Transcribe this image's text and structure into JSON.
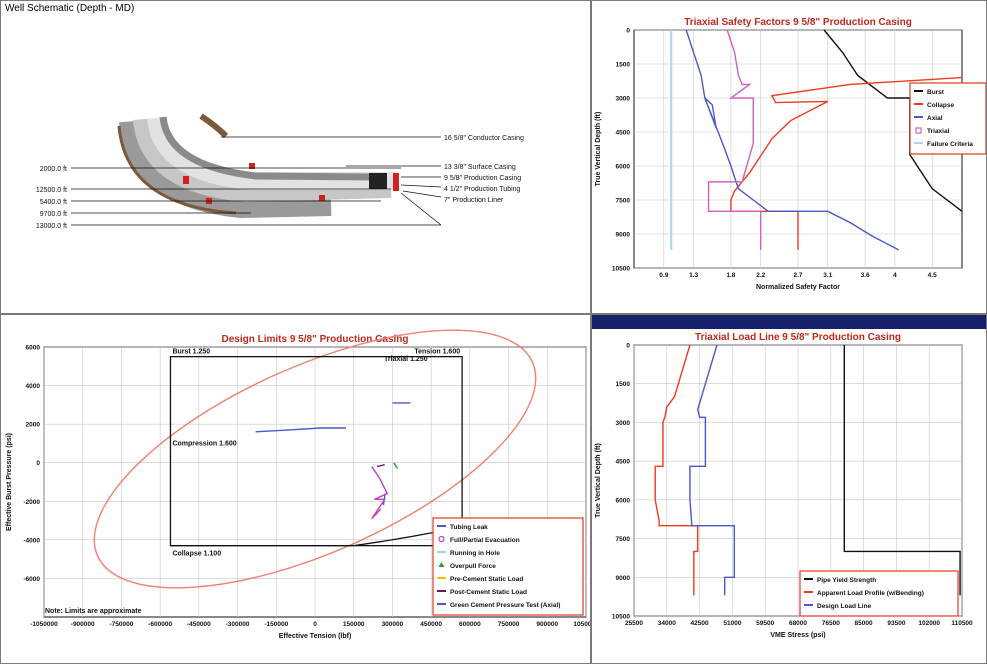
{
  "schematic": {
    "title": "Well Schematic  (Depth - MD)",
    "depth_labels": [
      "2000.0 ft",
      "12500.0 ft",
      "5400.0 ft",
      "9700.0 ft",
      "13000.0 ft"
    ],
    "string_labels": [
      "16 5/8\" Conductor Casing",
      "13 3/8\" Surface Casing",
      "9 5/8\" Production Casing",
      "4 1/2\" Production Tubing",
      "7\" Production Liner"
    ]
  },
  "colors": {
    "title": "#c0281c",
    "grid": "#c8c8c8",
    "legend_border": "#e03a1e",
    "burst": "#111111",
    "collapse": "#f03a1e",
    "axial": "#4a58c8",
    "triaxial": "#d060c0",
    "failure": "#a8d4ee",
    "ellipse": "#f08070",
    "topbar": "#17216a"
  },
  "chart_data": [
    {
      "id": "triaxial_safety_factors",
      "type": "line",
      "title": "Triaxial Safety Factors  9 5/8\" Production Casing",
      "xlabel": "Normalized Safety Factor",
      "ylabel": "True Vertical Depth (ft)",
      "xlim": [
        0.5,
        4.9
      ],
      "ylim": [
        0,
        10500
      ],
      "y_inverted": true,
      "xticks": [
        0.9,
        1.3,
        1.8,
        2.2,
        2.7,
        3.1,
        3.6,
        4.0,
        4.5
      ],
      "yticks": [
        0,
        1500,
        3000,
        4500,
        6000,
        7500,
        9000,
        10500
      ],
      "legend": [
        "Burst",
        "Collapse",
        "Axial",
        "Triaxial",
        "Failure Criteria"
      ],
      "series": [
        {
          "name": "Burst",
          "color": "#111111",
          "x": [
            3.05,
            3.3,
            3.5,
            3.9,
            3.9,
            4.2,
            4.2,
            4.5,
            4.9
          ],
          "y": [
            0,
            1000,
            2000,
            3000,
            3000,
            3000,
            5500,
            7000,
            8000
          ]
        },
        {
          "name": "Collapse",
          "color": "#f03a1e",
          "x": [
            4.9,
            3.4,
            2.35,
            2.4,
            3.1,
            2.6,
            2.35,
            2.15,
            2.05,
            1.95,
            1.85,
            1.8,
            1.8,
            2.7,
            2.7
          ],
          "y": [
            2100,
            2400,
            2900,
            3200,
            3150,
            4000,
            4800,
            5800,
            6300,
            6700,
            7100,
            7500,
            8000,
            8000,
            9700
          ]
        },
        {
          "name": "Axial",
          "color": "#4a58c8",
          "x": [
            1.2,
            1.3,
            1.4,
            1.45,
            1.5,
            1.55,
            1.6,
            1.45,
            1.7,
            1.8,
            1.9,
            2.1,
            2.3,
            3.1,
            3.4,
            3.7,
            4.05
          ],
          "y": [
            0,
            1000,
            2000,
            3000,
            3150,
            3300,
            4300,
            3000,
            5100,
            6000,
            7000,
            7500,
            8000,
            8000,
            8500,
            9100,
            9700
          ]
        },
        {
          "name": "Triaxial",
          "color": "#d060c0",
          "x": [
            1.75,
            1.85,
            1.9,
            1.95,
            2.05,
            1.8,
            2.1,
            2.1,
            1.95,
            1.5,
            1.5,
            2.2,
            2.2
          ],
          "y": [
            0,
            1000,
            2000,
            2400,
            2400,
            3000,
            3000,
            5000,
            6700,
            6700,
            8000,
            8000,
            9700
          ]
        },
        {
          "name": "Failure Criteria",
          "color": "#a8d4ee",
          "x": [
            1.0,
            1.0
          ],
          "y": [
            0,
            9700
          ]
        }
      ]
    },
    {
      "id": "design_limits",
      "type": "scatter",
      "title": "Design Limits  9 5/8\" Production Casing",
      "xlabel": "Effective Tension (lbf)",
      "ylabel": "Effective Burst Pressure (psi)",
      "xlim": [
        -1050000,
        1050000
      ],
      "ylim": [
        -8000,
        6000
      ],
      "xticks": [
        -1050000,
        -900000,
        -750000,
        -600000,
        -450000,
        -300000,
        -150000,
        0,
        150000,
        300000,
        450000,
        600000,
        750000,
        900000,
        1050000
      ],
      "xtick_labels": [
        "-1050000",
        "-900000",
        "-750000",
        "-600000",
        "-450000",
        "-300000",
        "-150000",
        "0",
        "150000",
        "300000",
        "450000",
        "600000",
        "750000",
        "900000",
        "1050000"
      ],
      "yticks": [
        -6000,
        -4000,
        -2000,
        0,
        2000,
        4000,
        6000
      ],
      "annotations": {
        "triaxial": "Triaxial 1.250",
        "burst": "Burst 1.250",
        "tension": "Tension 1.600",
        "compression": "Compression 1.600",
        "collapse": "Collapse 1.100",
        "note": "Note: Limits are approximate"
      },
      "design_box": {
        "x": [
          -560000,
          570000
        ],
        "y": [
          -4300,
          5500
        ]
      },
      "legend": [
        "Tubing Leak",
        "Full/Partial Evacuation",
        "Running in Hole",
        "Overpull Force",
        "Pre-Cement Static Load",
        "Post-Cement Static Load",
        "Green Cement Pressure Test (Axial)"
      ],
      "series": [
        {
          "name": "Tubing Leak",
          "color": "#4a58c8",
          "x": [
            -230000,
            -100000,
            20000,
            120000
          ],
          "y": [
            1600,
            1700,
            1800,
            1800
          ]
        },
        {
          "name": "Tubing Leak 2",
          "color": "#4a58c8",
          "x": [
            300000,
            370000
          ],
          "y": [
            3100,
            3100
          ]
        },
        {
          "name": "Tubing Leak 3",
          "color": "#4a58c8",
          "x": [
            265000,
            272000
          ],
          "y": [
            -2200,
            -1600
          ]
        },
        {
          "name": "Full/Partial Evacuation",
          "color": "#c040c0",
          "x": [
            220000,
            250000,
            280000,
            230000,
            270000,
            220000,
            255000
          ],
          "y": [
            -200,
            -800,
            -1600,
            -1900,
            -1900,
            -2900,
            -2400
          ]
        },
        {
          "name": "Post-Cement Static Load",
          "color": "#6a1a6a",
          "x": [
            240000,
            270000
          ],
          "y": [
            -200,
            -100
          ]
        },
        {
          "name": "Overpull Force",
          "color": "#2aa02a",
          "x": [
            305000,
            320000
          ],
          "y": [
            0,
            -300
          ]
        }
      ]
    },
    {
      "id": "triaxial_load_line",
      "type": "line",
      "title": "Triaxial Load Line  9 5/8\" Production Casing",
      "xlabel": "VME Stress (psi)",
      "ylabel": "True Vertical Depth (ft)",
      "xlim": [
        25500,
        110500
      ],
      "ylim": [
        0,
        10500
      ],
      "y_inverted": true,
      "xticks": [
        25500,
        34000,
        42500,
        51000,
        59500,
        68000,
        76500,
        85000,
        93500,
        102000,
        110500
      ],
      "xtick_labels": [
        "25500",
        "34000",
        "42500",
        "51000",
        "59500",
        "68000",
        "76500",
        "85000",
        "93500",
        "102000",
        "110500"
      ],
      "yticks": [
        0,
        1500,
        3000,
        4500,
        6000,
        7500,
        9000,
        10500
      ],
      "legend": [
        "Pipe Yield Strength",
        "Apparent Load Profile (w/Bending)",
        "Design Load Line"
      ],
      "series": [
        {
          "name": "Pipe Yield Strength",
          "color": "#111111",
          "x": [
            80000,
            80000,
            110000,
            110000
          ],
          "y": [
            0,
            8000,
            8000,
            9700
          ]
        },
        {
          "name": "Apparent Load Profile (w/Bending)",
          "color": "#f03a1e",
          "x": [
            40000,
            38000,
            36000,
            34000,
            33500,
            33000,
            33000,
            31000,
            31000,
            32000,
            32000,
            42000,
            42000,
            41000,
            41000
          ],
          "y": [
            0,
            1000,
            2000,
            2400,
            2800,
            3000,
            4700,
            4700,
            6000,
            6800,
            7000,
            7000,
            8000,
            8000,
            9700
          ]
        },
        {
          "name": "Design Load Line",
          "color": "#4a58c8",
          "x": [
            47000,
            45000,
            43000,
            42000,
            42500,
            44000,
            44000,
            40000,
            40000,
            40500,
            50000,
            50000,
            51500,
            51500,
            49000,
            49000
          ],
          "y": [
            0,
            1000,
            2000,
            2500,
            2800,
            2800,
            4700,
            4700,
            6000,
            7000,
            7000,
            7000,
            7000,
            9000,
            9000,
            9700
          ]
        }
      ]
    }
  ]
}
